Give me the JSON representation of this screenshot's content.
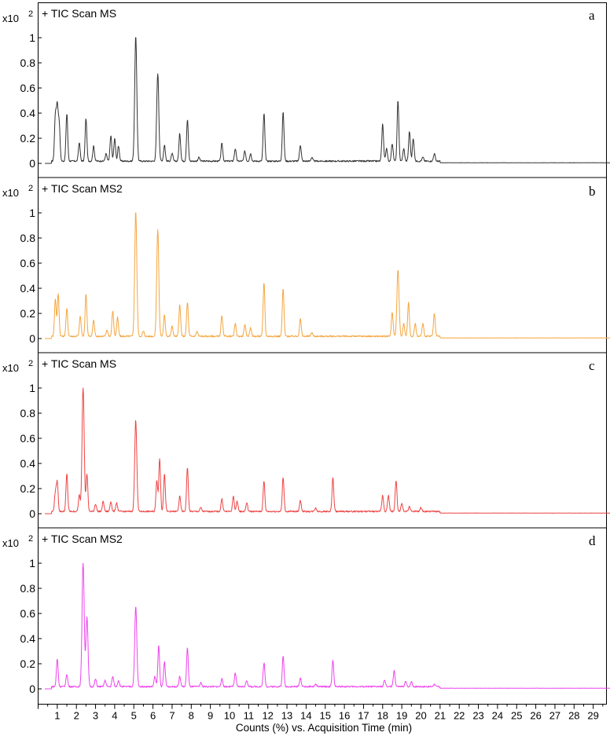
{
  "chart_data": [
    {
      "type": "line",
      "panel": "a",
      "title": "+ TIC Scan MS",
      "scale_label": "x10",
      "scale_exponent": "2",
      "color": "#333333",
      "ylim": [
        0,
        1
      ],
      "yticks": [
        "0",
        "0.2",
        "0.4",
        "0.6",
        "0.8",
        "1"
      ],
      "peaks": [
        [
          0.9,
          0.36
        ],
        [
          1.0,
          0.42
        ],
        [
          1.1,
          0.3
        ],
        [
          1.5,
          0.38
        ],
        [
          2.15,
          0.15
        ],
        [
          2.5,
          0.34
        ],
        [
          2.9,
          0.12
        ],
        [
          3.55,
          0.06
        ],
        [
          3.8,
          0.2
        ],
        [
          4.0,
          0.18
        ],
        [
          4.2,
          0.12
        ],
        [
          5.1,
          1.0
        ],
        [
          6.25,
          0.7
        ],
        [
          6.6,
          0.13
        ],
        [
          7.0,
          0.06
        ],
        [
          7.4,
          0.22
        ],
        [
          7.8,
          0.33
        ],
        [
          8.4,
          0.03
        ],
        [
          9.6,
          0.14
        ],
        [
          10.3,
          0.1
        ],
        [
          10.8,
          0.08
        ],
        [
          11.1,
          0.06
        ],
        [
          11.8,
          0.38
        ],
        [
          12.8,
          0.39
        ],
        [
          13.7,
          0.13
        ],
        [
          14.3,
          0.03
        ],
        [
          18.0,
          0.3
        ],
        [
          18.2,
          0.1
        ],
        [
          18.5,
          0.14
        ],
        [
          18.8,
          0.48
        ],
        [
          19.1,
          0.1
        ],
        [
          19.4,
          0.24
        ],
        [
          19.6,
          0.18
        ],
        [
          20.1,
          0.03
        ],
        [
          20.7,
          0.06
        ]
      ]
    },
    {
      "type": "line",
      "panel": "b",
      "title": "+ TIC Scan MS2",
      "scale_label": "x10",
      "scale_exponent": "2",
      "color": "#f4a640",
      "ylim": [
        0,
        1
      ],
      "yticks": [
        "0",
        "0.2",
        "0.4",
        "0.6",
        "0.8",
        "1"
      ],
      "peaks": [
        [
          0.9,
          0.3
        ],
        [
          1.05,
          0.34
        ],
        [
          1.5,
          0.22
        ],
        [
          2.2,
          0.16
        ],
        [
          2.5,
          0.34
        ],
        [
          2.9,
          0.13
        ],
        [
          3.6,
          0.05
        ],
        [
          3.9,
          0.2
        ],
        [
          4.15,
          0.15
        ],
        [
          5.1,
          1.0
        ],
        [
          5.5,
          0.04
        ],
        [
          6.25,
          0.85
        ],
        [
          6.6,
          0.17
        ],
        [
          7.0,
          0.08
        ],
        [
          7.4,
          0.25
        ],
        [
          7.8,
          0.27
        ],
        [
          8.3,
          0.04
        ],
        [
          9.6,
          0.16
        ],
        [
          10.3,
          0.1
        ],
        [
          10.8,
          0.09
        ],
        [
          11.1,
          0.07
        ],
        [
          11.8,
          0.43
        ],
        [
          12.8,
          0.38
        ],
        [
          13.7,
          0.14
        ],
        [
          14.3,
          0.03
        ],
        [
          18.5,
          0.19
        ],
        [
          18.8,
          0.53
        ],
        [
          19.1,
          0.1
        ],
        [
          19.35,
          0.27
        ],
        [
          19.7,
          0.1
        ],
        [
          20.1,
          0.1
        ],
        [
          20.7,
          0.18
        ]
      ]
    },
    {
      "type": "line",
      "panel": "c",
      "title": "+ TIC Scan MS",
      "scale_label": "x10",
      "scale_exponent": "2",
      "color": "#ee4444",
      "ylim": [
        0,
        1
      ],
      "yticks": [
        "0",
        "0.2",
        "0.4",
        "0.6",
        "0.8",
        "1"
      ],
      "peaks": [
        [
          0.9,
          0.15
        ],
        [
          1.0,
          0.23
        ],
        [
          1.5,
          0.3
        ],
        [
          2.15,
          0.13
        ],
        [
          2.35,
          1.0
        ],
        [
          2.55,
          0.3
        ],
        [
          3.0,
          0.06
        ],
        [
          3.4,
          0.08
        ],
        [
          3.8,
          0.08
        ],
        [
          4.1,
          0.07
        ],
        [
          5.1,
          0.73
        ],
        [
          6.2,
          0.25
        ],
        [
          6.35,
          0.42
        ],
        [
          6.6,
          0.3
        ],
        [
          7.4,
          0.12
        ],
        [
          7.8,
          0.35
        ],
        [
          8.5,
          0.03
        ],
        [
          9.6,
          0.1
        ],
        [
          10.2,
          0.12
        ],
        [
          10.4,
          0.08
        ],
        [
          10.9,
          0.07
        ],
        [
          11.8,
          0.24
        ],
        [
          12.8,
          0.27
        ],
        [
          13.7,
          0.09
        ],
        [
          14.5,
          0.03
        ],
        [
          15.4,
          0.27
        ],
        [
          18.0,
          0.13
        ],
        [
          18.3,
          0.13
        ],
        [
          18.7,
          0.25
        ],
        [
          19.0,
          0.06
        ],
        [
          19.4,
          0.04
        ],
        [
          20.0,
          0.03
        ]
      ]
    },
    {
      "type": "line",
      "panel": "d",
      "title": "+ TIC Scan MS2",
      "scale_label": "x10",
      "scale_exponent": "2",
      "color": "#ee44ee",
      "ylim": [
        0,
        1
      ],
      "yticks": [
        "0",
        "0.2",
        "0.4",
        "0.6",
        "0.8",
        "1"
      ],
      "peaks": [
        [
          1.0,
          0.22
        ],
        [
          1.5,
          0.1
        ],
        [
          2.35,
          1.0
        ],
        [
          2.55,
          0.55
        ],
        [
          3.0,
          0.06
        ],
        [
          3.5,
          0.05
        ],
        [
          3.9,
          0.08
        ],
        [
          4.2,
          0.05
        ],
        [
          5.1,
          0.64
        ],
        [
          6.1,
          0.08
        ],
        [
          6.3,
          0.33
        ],
        [
          6.6,
          0.2
        ],
        [
          7.4,
          0.08
        ],
        [
          7.8,
          0.31
        ],
        [
          8.5,
          0.03
        ],
        [
          9.6,
          0.06
        ],
        [
          10.3,
          0.11
        ],
        [
          10.9,
          0.05
        ],
        [
          11.8,
          0.19
        ],
        [
          12.8,
          0.24
        ],
        [
          13.7,
          0.07
        ],
        [
          14.5,
          0.02
        ],
        [
          15.4,
          0.21
        ],
        [
          18.1,
          0.05
        ],
        [
          18.6,
          0.13
        ],
        [
          19.2,
          0.04
        ],
        [
          19.5,
          0.04
        ],
        [
          20.7,
          0.02
        ]
      ]
    }
  ],
  "x_axis": {
    "label": "Counts (%) vs. Acquisition Time (min)",
    "xlim": [
      0,
      30
    ],
    "tick_labels": [
      "1",
      "2",
      "3",
      "4",
      "5",
      "6",
      "7",
      "8",
      "9",
      "10",
      "11",
      "12",
      "13",
      "14",
      "15",
      "16",
      "17",
      "18",
      "19",
      "20",
      "21",
      "22",
      "23",
      "24",
      "25",
      "26",
      "27",
      "28",
      "29"
    ]
  }
}
